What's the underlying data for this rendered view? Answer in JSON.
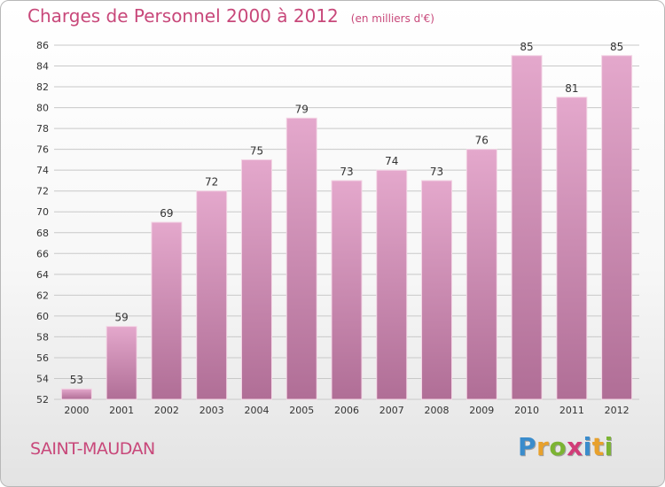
{
  "header": {
    "title": "Charges de Personnel 2000 à 2012",
    "subtitle": "(en milliers d'€)"
  },
  "footer": {
    "commune": "SAINT-MAUDAN",
    "logo": {
      "letters": [
        "P",
        "r",
        "o",
        "x",
        "i",
        "t",
        "i"
      ],
      "colors": [
        "#3a8ccc",
        "#e8a12c",
        "#7cb433",
        "#d13c78",
        "#3a8ccc",
        "#e8a12c",
        "#7cb433"
      ]
    }
  },
  "colors": {
    "bar_fill_top": "#e4a8cc",
    "bar_fill_bottom": "#b06e96",
    "bar_edge": "#f4d6e6",
    "grid": "#c8c8c8",
    "axis_text": "#333333"
  },
  "chart_data": {
    "type": "bar",
    "title": "Charges de Personnel 2000 à 2012",
    "subtitle": "(en milliers d'€)",
    "categories": [
      "2000",
      "2001",
      "2002",
      "2003",
      "2004",
      "2005",
      "2006",
      "2007",
      "2008",
      "2009",
      "2010",
      "2011",
      "2012"
    ],
    "values": [
      53,
      59,
      69,
      72,
      75,
      79,
      73,
      74,
      73,
      76,
      85,
      81,
      85
    ],
    "ylim": [
      52,
      86
    ],
    "yticks": [
      52,
      54,
      56,
      58,
      60,
      62,
      64,
      66,
      68,
      70,
      72,
      74,
      76,
      78,
      80,
      82,
      84,
      86
    ],
    "grid": true,
    "data_labels": true
  }
}
